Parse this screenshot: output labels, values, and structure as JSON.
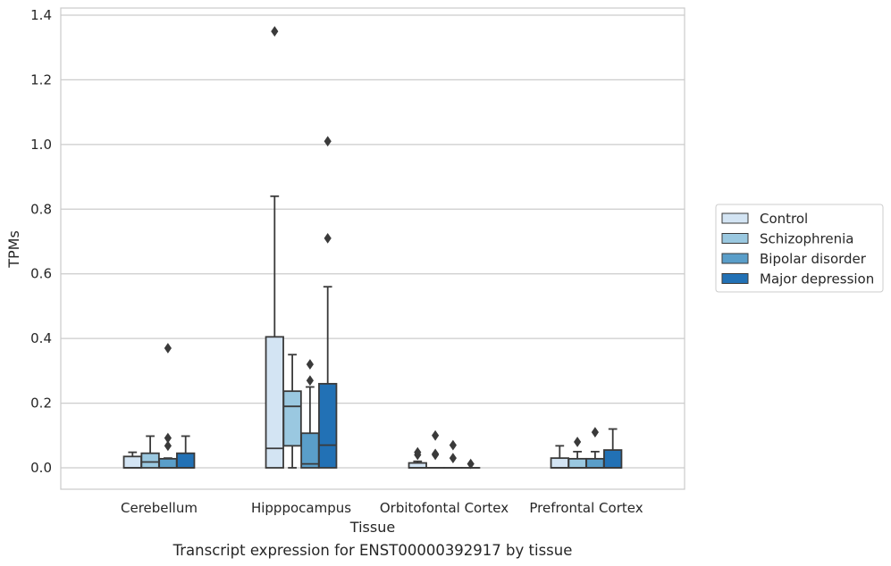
{
  "chart_data": {
    "type": "box",
    "xlabel": "Tissue",
    "ylabel": "TPMs",
    "caption": "Transcript expression for ENST00000392917 by tissue",
    "ylim": [
      -0.065,
      1.42
    ],
    "yticks": [
      "0.0",
      "0.2",
      "0.4",
      "0.6",
      "0.8",
      "1.0",
      "1.2",
      "1.4"
    ],
    "ytick_values": [
      0.0,
      0.2,
      0.4,
      0.6,
      0.8,
      1.0,
      1.2,
      1.4
    ],
    "grid": "horizontal",
    "legend_position": "right",
    "categories": [
      "Cerebellum",
      "Hipppocampus",
      "Orbitofontal Cortex",
      "Prefrontal Cortex"
    ],
    "series": [
      {
        "name": "Control",
        "color": "#d3e4f3",
        "boxes": [
          {
            "q1": 0.0,
            "median": 0.0,
            "q3": 0.035,
            "whislo": 0.0,
            "whishi": 0.048,
            "fliers": []
          },
          {
            "q1": 0.0,
            "median": 0.06,
            "q3": 0.405,
            "whislo": 0.0,
            "whishi": 0.84,
            "fliers": [
              1.35
            ]
          },
          {
            "q1": 0.0,
            "median": 0.0,
            "q3": 0.015,
            "whislo": 0.0,
            "whishi": 0.02,
            "fliers": [
              0.04,
              0.048
            ]
          },
          {
            "q1": 0.0,
            "median": 0.0,
            "q3": 0.03,
            "whislo": 0.0,
            "whishi": 0.068,
            "fliers": []
          }
        ]
      },
      {
        "name": "Schizophrenia",
        "color": "#9ac8e0",
        "boxes": [
          {
            "q1": 0.0,
            "median": 0.018,
            "q3": 0.045,
            "whislo": 0.0,
            "whishi": 0.098,
            "fliers": []
          },
          {
            "q1": 0.068,
            "median": 0.19,
            "q3": 0.237,
            "whislo": 0.0,
            "whishi": 0.35,
            "fliers": []
          },
          {
            "q1": 0.0,
            "median": 0.0,
            "q3": 0.0,
            "whislo": 0.0,
            "whishi": 0.0,
            "fliers": [
              0.1,
              0.043,
              0.04
            ]
          },
          {
            "q1": 0.0,
            "median": 0.0,
            "q3": 0.028,
            "whislo": 0.0,
            "whishi": 0.05,
            "fliers": [
              0.08
            ]
          }
        ]
      },
      {
        "name": "Bipolar disorder",
        "color": "#5a9ec9",
        "boxes": [
          {
            "q1": 0.0,
            "median": 0.0,
            "q3": 0.028,
            "whislo": 0.0,
            "whishi": 0.03,
            "fliers": [
              0.37,
              0.092,
              0.068
            ]
          },
          {
            "q1": 0.0,
            "median": 0.012,
            "q3": 0.107,
            "whislo": 0.0,
            "whishi": 0.25,
            "fliers": [
              0.32,
              0.27
            ]
          },
          {
            "q1": 0.0,
            "median": 0.0,
            "q3": 0.0,
            "whislo": 0.0,
            "whishi": 0.0,
            "fliers": [
              0.07,
              0.03
            ]
          },
          {
            "q1": 0.0,
            "median": 0.0,
            "q3": 0.028,
            "whislo": 0.0,
            "whishi": 0.05,
            "fliers": [
              0.11
            ]
          }
        ]
      },
      {
        "name": "Major depression",
        "color": "#2271b5",
        "boxes": [
          {
            "q1": 0.0,
            "median": 0.0,
            "q3": 0.045,
            "whislo": 0.0,
            "whishi": 0.098,
            "fliers": []
          },
          {
            "q1": 0.0,
            "median": 0.07,
            "q3": 0.26,
            "whislo": 0.0,
            "whishi": 0.56,
            "fliers": [
              1.01,
              0.71
            ]
          },
          {
            "q1": 0.0,
            "median": 0.0,
            "q3": 0.0,
            "whislo": 0.0,
            "whishi": 0.0,
            "fliers": [
              0.012
            ]
          },
          {
            "q1": 0.0,
            "median": 0.0,
            "q3": 0.055,
            "whislo": 0.0,
            "whishi": 0.12,
            "fliers": []
          }
        ]
      }
    ]
  }
}
